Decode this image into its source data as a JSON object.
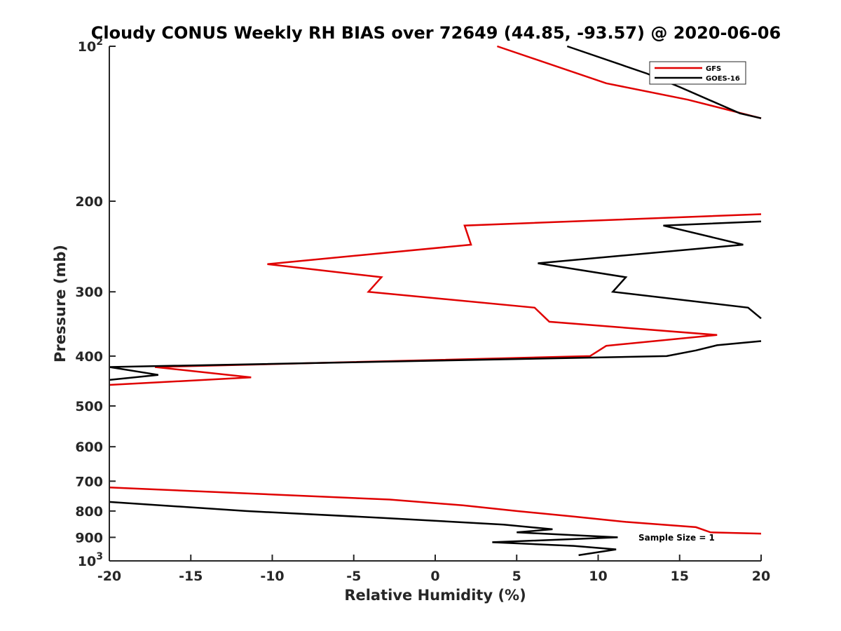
{
  "chart_data": {
    "type": "line",
    "title": "Cloudy CONUS Weekly RH BIAS over 72649 (44.85, -93.57) @ 2020-06-06",
    "xlabel": "Relative Humidity (%)",
    "ylabel": "Pressure (mb)",
    "xlim": [
      -20,
      20
    ],
    "ylim": [
      100,
      1000
    ],
    "yscale": "log",
    "y_reversed": true,
    "grid": false,
    "legend_position": "top-right",
    "xticks": [
      -20,
      -15,
      -10,
      -5,
      0,
      5,
      10,
      15,
      20
    ],
    "xtick_labels": [
      "-20",
      "-15",
      "-10",
      "-5",
      "0",
      "5",
      "10",
      "15",
      "20"
    ],
    "yticks": [
      100,
      200,
      300,
      400,
      500,
      600,
      700,
      800,
      900,
      1000
    ],
    "ytick_labels": [
      {
        "base": "10",
        "exp": "2"
      },
      {
        "base": "200",
        "exp": ""
      },
      {
        "base": "300",
        "exp": ""
      },
      {
        "base": "400",
        "exp": ""
      },
      {
        "base": "500",
        "exp": ""
      },
      {
        "base": "600",
        "exp": ""
      },
      {
        "base": "700",
        "exp": ""
      },
      {
        "base": "800",
        "exp": ""
      },
      {
        "base": "900",
        "exp": ""
      },
      {
        "base": "10",
        "exp": "3"
      }
    ],
    "series": [
      {
        "name": "GFS",
        "color": "#e00000",
        "points": [
          [
            3.8,
            100
          ],
          [
            10.5,
            118
          ],
          [
            15.5,
            127
          ],
          [
            20,
            138
          ],
          null,
          [
            20,
            212
          ],
          [
            1.8,
            223
          ],
          [
            2.2,
            243
          ],
          [
            -10.3,
            265
          ],
          [
            -3.3,
            281
          ],
          [
            -4.1,
            300
          ],
          [
            6.1,
            322
          ],
          [
            7.0,
            343
          ],
          [
            17.3,
            364
          ],
          [
            10.5,
            382
          ],
          [
            9.5,
            400
          ],
          [
            -17.2,
            420
          ],
          [
            -11.3,
            440
          ],
          [
            -20,
            455
          ],
          null,
          [
            -20,
            720
          ],
          [
            -2.8,
            760
          ],
          [
            1.7,
            780
          ],
          [
            5.0,
            800
          ],
          [
            8.5,
            820
          ],
          [
            11.7,
            840
          ],
          [
            16.0,
            860
          ],
          [
            16.9,
            880
          ],
          [
            20,
            885
          ]
        ]
      },
      {
        "name": "GOES-16",
        "color": "#000000",
        "points": [
          [
            8.1,
            100
          ],
          [
            13.0,
            113
          ],
          [
            15.0,
            120
          ],
          [
            18.7,
            135
          ],
          [
            20,
            138
          ],
          null,
          [
            20,
            219
          ],
          [
            14.0,
            223
          ],
          [
            18.9,
            243
          ],
          [
            6.3,
            264
          ],
          [
            11.7,
            281
          ],
          [
            10.9,
            300
          ],
          [
            19.2,
            322
          ],
          [
            20,
            338
          ],
          null,
          [
            20,
            374
          ],
          [
            17.3,
            381
          ],
          [
            16.0,
            390
          ],
          [
            14.2,
            400
          ],
          [
            -20,
            420
          ],
          [
            -17.0,
            435
          ],
          [
            -20,
            445
          ],
          null,
          [
            -20,
            768
          ],
          [
            -11.6,
            800
          ],
          [
            -3.2,
            825
          ],
          [
            4.2,
            850
          ],
          [
            7.2,
            868
          ],
          [
            5.0,
            880
          ],
          [
            11.2,
            900
          ],
          [
            3.5,
            920
          ],
          [
            8.5,
            935
          ],
          [
            11.1,
            950
          ],
          [
            8.8,
            975
          ]
        ]
      }
    ],
    "annotations": [
      "Sample Size = 1"
    ]
  }
}
